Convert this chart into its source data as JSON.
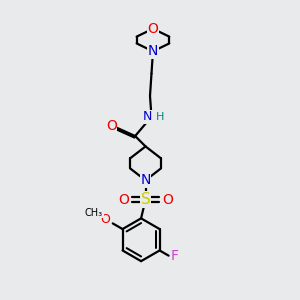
{
  "bg_color": "#e8eaec",
  "bond_color": "#000000",
  "N_color": "#0000cc",
  "O_color": "#ee0000",
  "S_color": "#cccc00",
  "F_color": "#cc44cc",
  "H_color": "#008888",
  "font_size": 9,
  "linewidth": 1.6,
  "figsize": [
    3.0,
    3.0
  ],
  "dpi": 100,
  "xlim": [
    0,
    10
  ],
  "ylim": [
    0,
    10
  ]
}
